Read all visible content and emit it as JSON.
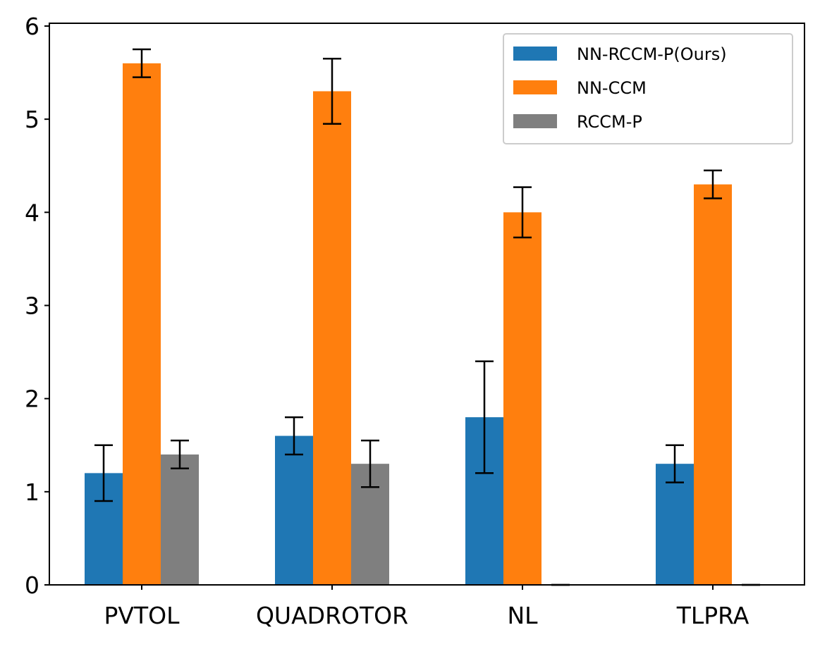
{
  "chart_data": {
    "type": "bar",
    "title": "",
    "xlabel": "",
    "ylabel": "",
    "ylim": [
      0,
      6.03
    ],
    "yticks": [
      0,
      1,
      2,
      3,
      4,
      5,
      6
    ],
    "ytick_labels": [
      "0",
      "1",
      "2",
      "3",
      "4",
      "5",
      "6"
    ],
    "categories": [
      "PVTOL",
      "QUADROTOR",
      "NL",
      "TLPRA"
    ],
    "legend_position": "top-right",
    "series": [
      {
        "name": "NN-RCCM-P(Ours)",
        "color": "#1f77b4",
        "values": [
          1.2,
          1.6,
          1.8,
          1.3
        ],
        "errors": [
          0.3,
          0.2,
          0.6,
          0.2
        ]
      },
      {
        "name": "NN-CCM",
        "color": "#ff7f0e",
        "values": [
          5.6,
          5.3,
          4.0,
          4.3
        ],
        "errors": [
          0.15,
          0.35,
          0.27,
          0.15
        ]
      },
      {
        "name": "RCCM-P",
        "color": "#7f7f7f",
        "values": [
          1.4,
          1.3,
          0.0,
          0.0
        ],
        "errors": [
          0.15,
          0.25,
          0.0,
          0.0
        ]
      }
    ]
  }
}
